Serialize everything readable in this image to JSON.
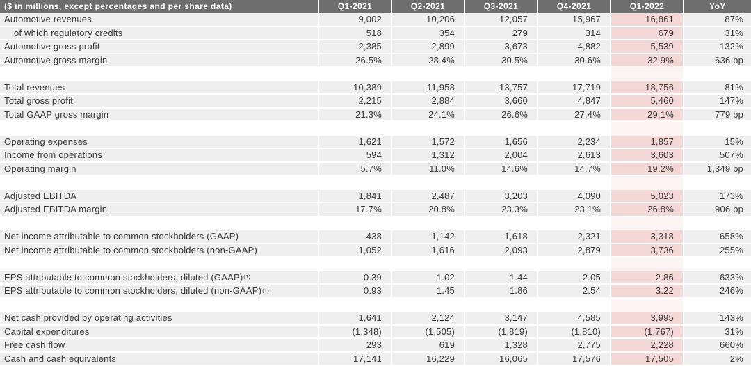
{
  "colors": {
    "header_bg": "#6f6e6e",
    "header_text": "#ffffff",
    "row_bg": "#f0efef",
    "row_separator": "#ffffff",
    "highlight_column_bg": "#f3d8d6",
    "body_text": "#383838"
  },
  "table": {
    "header": {
      "label": "($ in millions, except percentages and per share data)",
      "columns": [
        "Q1-2021",
        "Q2-2021",
        "Q3-2021",
        "Q4-2021",
        "Q1-2022",
        "YoY"
      ],
      "highlight_column": "Q1-2022"
    },
    "sections": [
      {
        "rows": [
          {
            "label": "Automotive revenues",
            "values": [
              "9,002",
              "10,206",
              "12,057",
              "15,967",
              "16,861",
              "87%"
            ]
          },
          {
            "label": "of which regulatory credits",
            "indent": true,
            "values": [
              "518",
              "354",
              "279",
              "314",
              "679",
              "31%"
            ]
          },
          {
            "label": "Automotive gross profit",
            "values": [
              "2,385",
              "2,899",
              "3,673",
              "4,882",
              "5,539",
              "132%"
            ]
          },
          {
            "label": "Automotive gross margin",
            "values": [
              "26.5%",
              "28.4%",
              "30.5%",
              "30.6%",
              "32.9%",
              "636 bp"
            ]
          }
        ]
      },
      {
        "rows": [
          {
            "label": "Total revenues",
            "values": [
              "10,389",
              "11,958",
              "13,757",
              "17,719",
              "18,756",
              "81%"
            ]
          },
          {
            "label": "Total gross profit",
            "values": [
              "2,215",
              "2,884",
              "3,660",
              "4,847",
              "5,460",
              "147%"
            ]
          },
          {
            "label": "Total GAAP gross margin",
            "values": [
              "21.3%",
              "24.1%",
              "26.6%",
              "27.4%",
              "29.1%",
              "779 bp"
            ]
          }
        ]
      },
      {
        "rows": [
          {
            "label": "Operating expenses",
            "values": [
              "1,621",
              "1,572",
              "1,656",
              "2,234",
              "1,857",
              "15%"
            ]
          },
          {
            "label": "Income from operations",
            "values": [
              "594",
              "1,312",
              "2,004",
              "2,613",
              "3,603",
              "507%"
            ]
          },
          {
            "label": "Operating margin",
            "values": [
              "5.7%",
              "11.0%",
              "14.6%",
              "14.7%",
              "19.2%",
              "1,349 bp"
            ]
          }
        ]
      },
      {
        "rows": [
          {
            "label": "Adjusted EBITDA",
            "values": [
              "1,841",
              "2,487",
              "3,203",
              "4,090",
              "5,023",
              "173%"
            ]
          },
          {
            "label": "Adjusted EBITDA margin",
            "values": [
              "17.7%",
              "20.8%",
              "23.3%",
              "23.1%",
              "26.8%",
              "906 bp"
            ]
          }
        ]
      },
      {
        "rows": [
          {
            "label": "Net income attributable to common stockholders (GAAP)",
            "values": [
              "438",
              "1,142",
              "1,618",
              "2,321",
              "3,318",
              "658%"
            ]
          },
          {
            "label": "Net income attributable to common stockholders (non-GAAP)",
            "values": [
              "1,052",
              "1,616",
              "2,093",
              "2,879",
              "3,736",
              "255%"
            ]
          }
        ]
      },
      {
        "rows": [
          {
            "label": "EPS attributable to common stockholders, diluted (GAAP)",
            "sup": "(1)",
            "values": [
              "0.39",
              "1.02",
              "1.44",
              "2.05",
              "2.86",
              "633%"
            ]
          },
          {
            "label": "EPS attributable to common stockholders, diluted (non-GAAP)",
            "sup": "(1)",
            "values": [
              "0.93",
              "1.45",
              "1.86",
              "2.54",
              "3.22",
              "246%"
            ]
          }
        ]
      },
      {
        "rows": [
          {
            "label": "Net cash provided by operating activities",
            "values": [
              "1,641",
              "2,124",
              "3,147",
              "4,585",
              "3,995",
              "143%"
            ]
          },
          {
            "label": "Capital expenditures",
            "values": [
              "(1,348)",
              "(1,505)",
              "(1,819)",
              "(1,810)",
              "(1,767)",
              "31%"
            ]
          },
          {
            "label": "Free cash flow",
            "values": [
              "293",
              "619",
              "1,328",
              "2,775",
              "2,228",
              "660%"
            ]
          },
          {
            "label": "Cash and cash equivalents",
            "values": [
              "17,141",
              "16,229",
              "16,065",
              "17,576",
              "17,505",
              "2%"
            ]
          }
        ]
      }
    ]
  }
}
